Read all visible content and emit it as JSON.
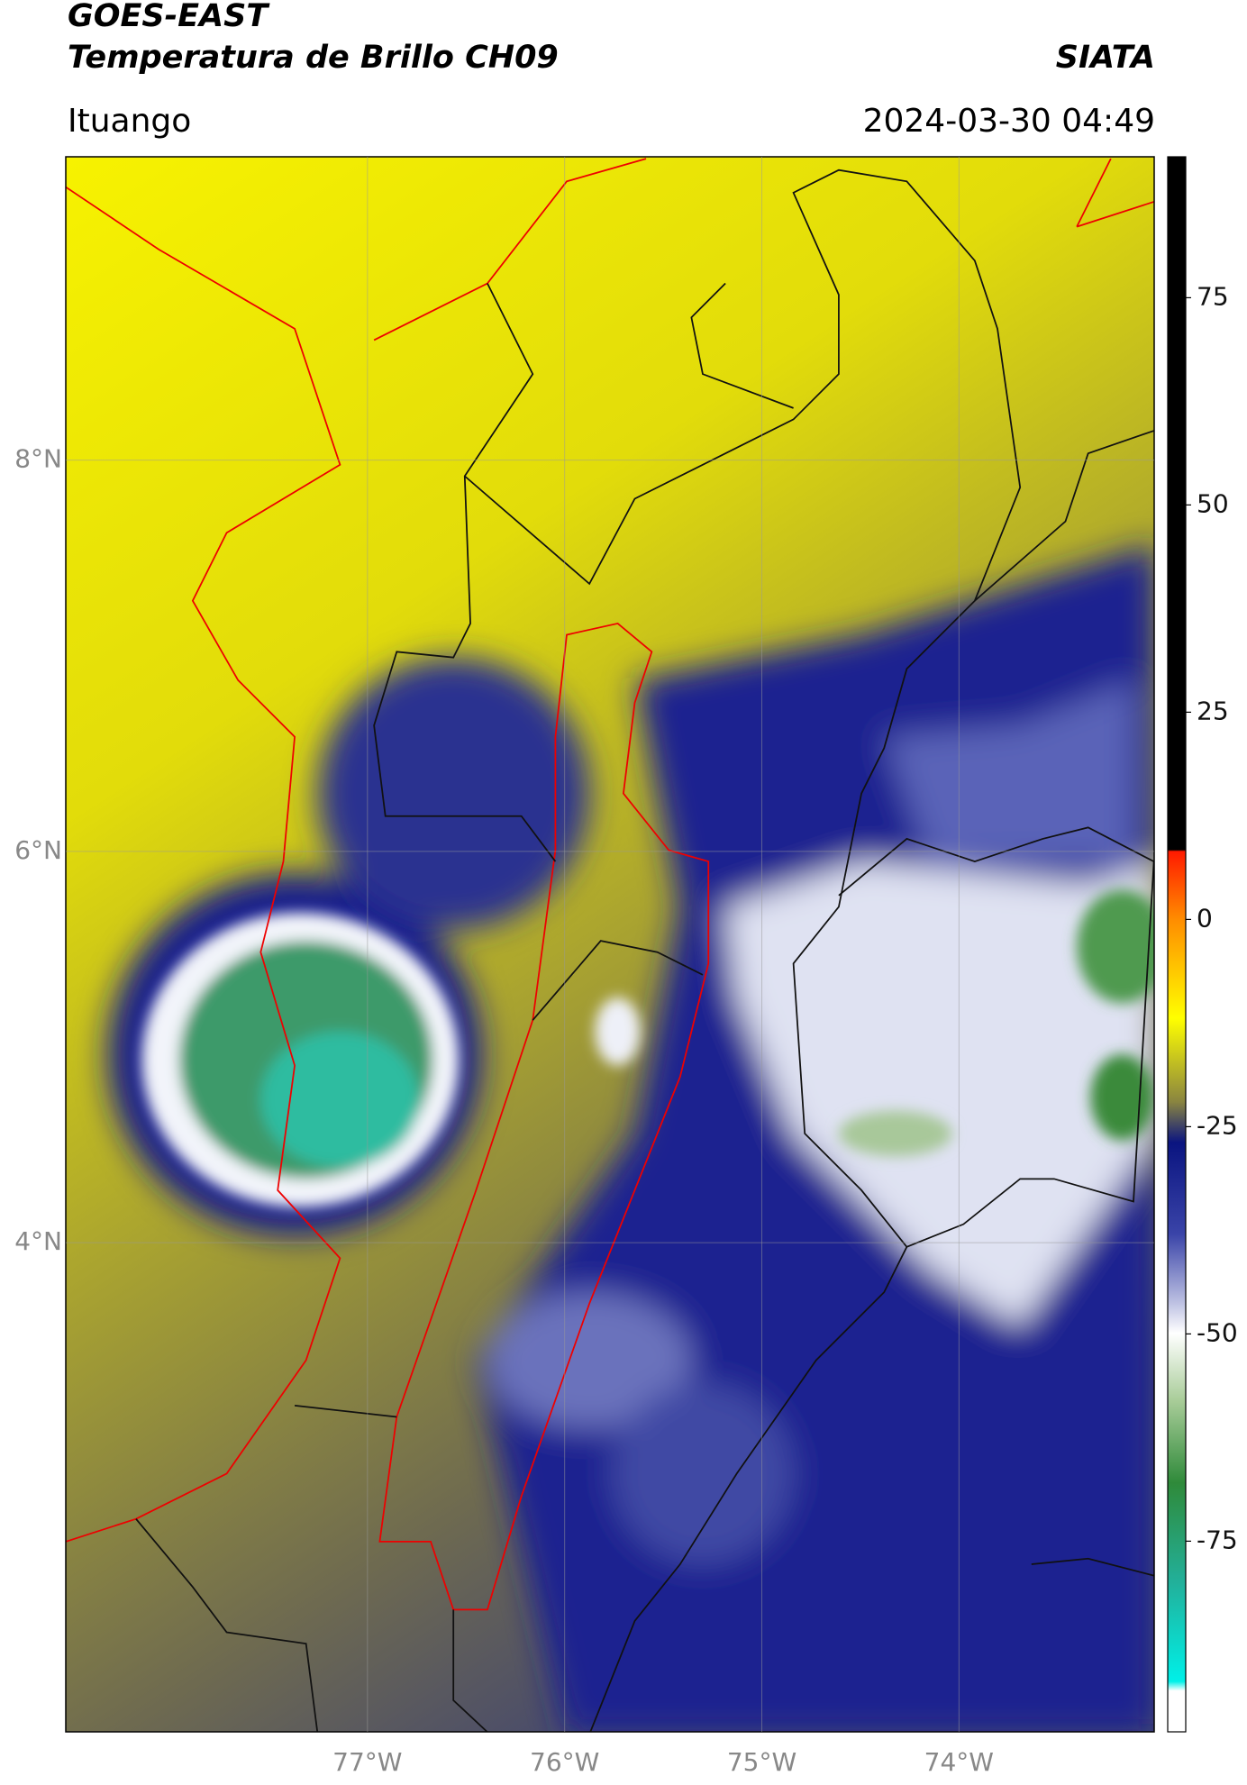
{
  "header": {
    "title": "GOES-EAST",
    "subtitle": "Temperatura de Brillo CH09",
    "brand": "SIATA",
    "location": "Ituango",
    "datetime": "2024-03-30 04:49"
  },
  "map": {
    "xlim": [
      -78.53,
      -73.01
    ],
    "ylim": [
      1.5,
      9.55
    ],
    "xticks": [
      {
        "value": -77,
        "label": "77°W"
      },
      {
        "value": -76,
        "label": "76°W"
      },
      {
        "value": -75,
        "label": "75°W"
      },
      {
        "value": -74,
        "label": "74°W"
      }
    ],
    "yticks": [
      {
        "value": 4,
        "label": "4°N"
      },
      {
        "value": 6,
        "label": "6°N"
      },
      {
        "value": 8,
        "label": "8°N"
      }
    ]
  },
  "colorbar": {
    "lim": [
      -98,
      92
    ],
    "ticks": [
      -75,
      -50,
      -25,
      0,
      25,
      50,
      75
    ]
  }
}
